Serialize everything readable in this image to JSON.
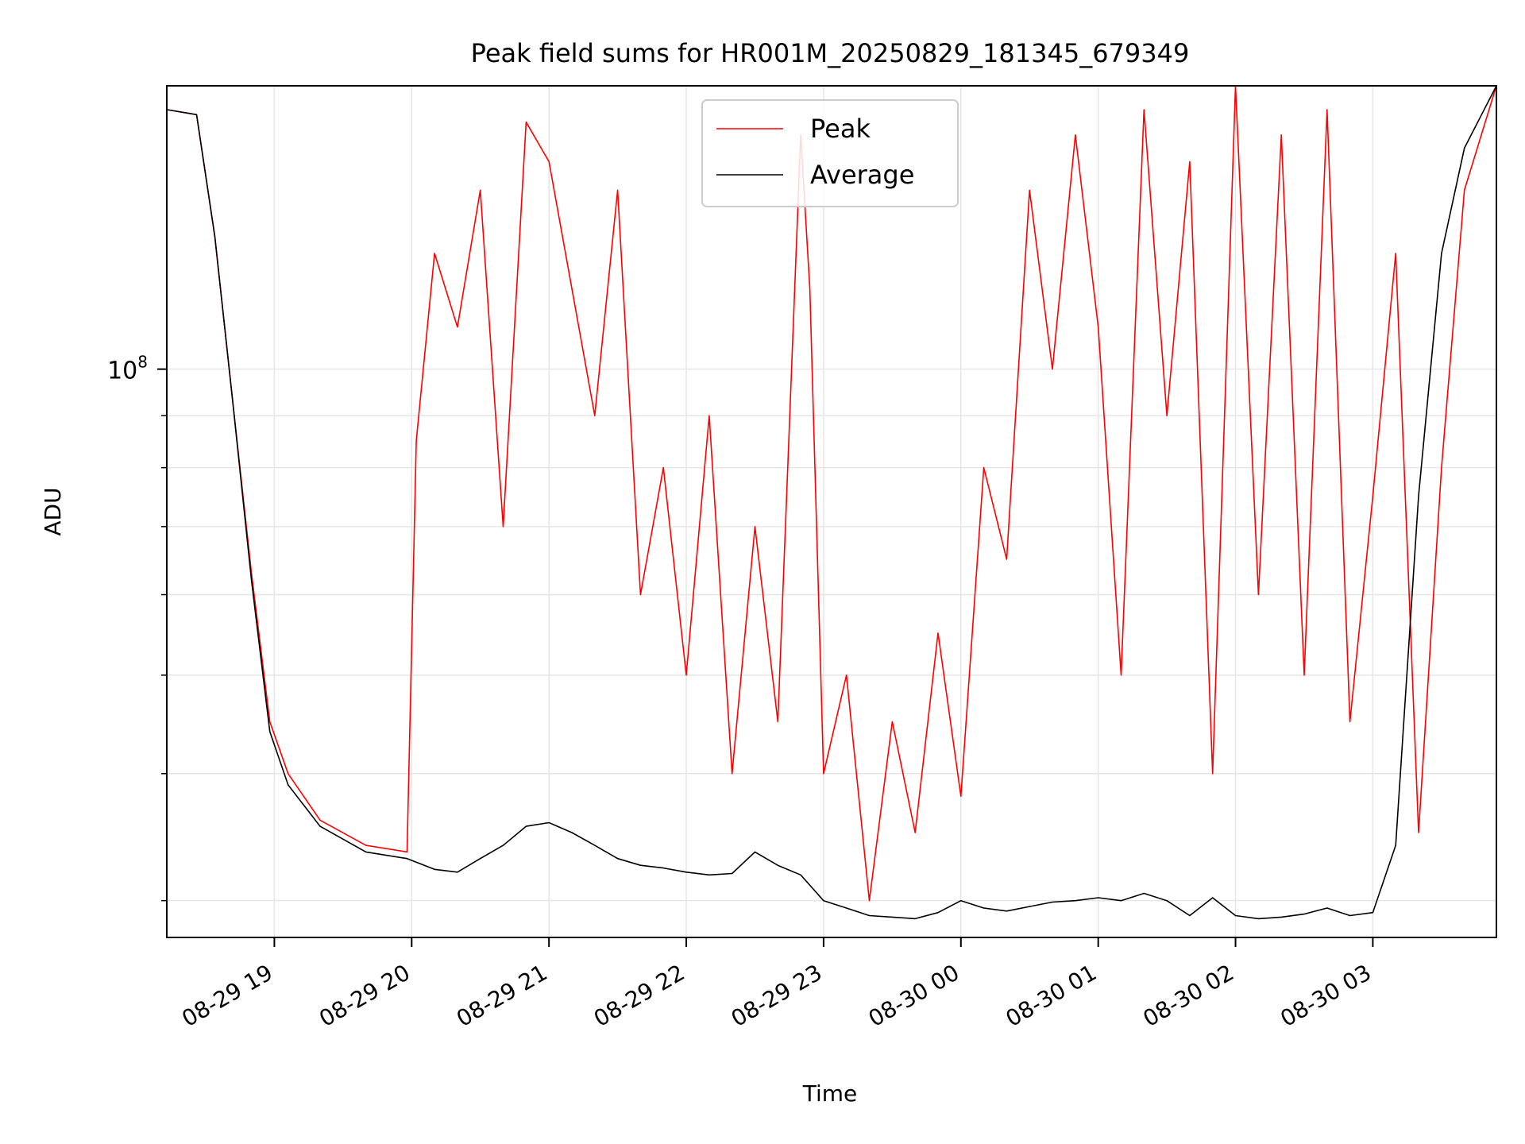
{
  "chart_data": {
    "type": "line",
    "title": "Peak field sums for HR001M_20250829_181345_679349",
    "xlabel": "Time",
    "ylabel": "ADU",
    "yscale": "log",
    "grid": true,
    "legend_position": "top-center",
    "x_range": [
      "2025-08-29 18:13",
      "2025-08-30 03:54"
    ],
    "ylim": [
      27600000,
      190000000
    ],
    "x_ticks": [
      {
        "value": "2025-08-29 19:00",
        "label": "08-29 19"
      },
      {
        "value": "2025-08-29 20:00",
        "label": "08-29 20"
      },
      {
        "value": "2025-08-29 21:00",
        "label": "08-29 21"
      },
      {
        "value": "2025-08-29 22:00",
        "label": "08-29 22"
      },
      {
        "value": "2025-08-29 23:00",
        "label": "08-29 23"
      },
      {
        "value": "2025-08-30 00:00",
        "label": "08-30 00"
      },
      {
        "value": "2025-08-30 01:00",
        "label": "08-30 01"
      },
      {
        "value": "2025-08-30 02:00",
        "label": "08-30 02"
      },
      {
        "value": "2025-08-30 03:00",
        "label": "08-30 03"
      }
    ],
    "y_ticks": [
      {
        "value": 100000000,
        "base": "10",
        "exp": "8"
      }
    ],
    "series": [
      {
        "name": "Peak",
        "color": "#ff0000",
        "x": [
          "2025-08-29 18:13",
          "2025-08-29 18:26",
          "2025-08-29 18:34",
          "2025-08-29 18:42",
          "2025-08-29 18:50",
          "2025-08-29 18:58",
          "2025-08-29 19:06",
          "2025-08-29 19:20",
          "2025-08-29 19:40",
          "2025-08-29 19:58",
          "2025-08-29 20:02",
          "2025-08-29 20:10",
          "2025-08-29 20:20",
          "2025-08-29 20:30",
          "2025-08-29 20:40",
          "2025-08-29 20:50",
          "2025-08-29 21:00",
          "2025-08-29 21:10",
          "2025-08-29 21:20",
          "2025-08-29 21:30",
          "2025-08-29 21:40",
          "2025-08-29 21:50",
          "2025-08-29 22:00",
          "2025-08-29 22:10",
          "2025-08-29 22:20",
          "2025-08-29 22:30",
          "2025-08-29 22:40",
          "2025-08-29 22:50",
          "2025-08-29 22:54",
          "2025-08-29 23:00",
          "2025-08-29 23:10",
          "2025-08-29 23:20",
          "2025-08-29 23:30",
          "2025-08-29 23:40",
          "2025-08-29 23:50",
          "2025-08-30 00:00",
          "2025-08-30 00:10",
          "2025-08-30 00:20",
          "2025-08-30 00:30",
          "2025-08-30 00:40",
          "2025-08-30 00:50",
          "2025-08-30 01:00",
          "2025-08-30 01:10",
          "2025-08-30 01:20",
          "2025-08-30 01:30",
          "2025-08-30 01:40",
          "2025-08-30 01:50",
          "2025-08-30 02:00",
          "2025-08-30 02:10",
          "2025-08-30 02:20",
          "2025-08-30 02:30",
          "2025-08-30 02:40",
          "2025-08-30 02:50",
          "2025-08-30 03:00",
          "2025-08-30 03:10",
          "2025-08-30 03:20",
          "2025-08-30 03:30",
          "2025-08-30 03:40",
          "2025-08-30 03:54"
        ],
        "values": [
          180000000,
          178000000,
          135000000,
          92000000,
          63000000,
          45000000,
          40000000,
          36000000,
          34000000,
          33500000,
          85000000,
          130000000,
          110000000,
          150000000,
          70000000,
          175000000,
          160000000,
          120000000,
          90000000,
          150000000,
          60000000,
          80000000,
          50000000,
          90000000,
          40000000,
          70000000,
          45000000,
          170000000,
          120000000,
          40000000,
          50000000,
          30000000,
          45000000,
          35000000,
          55000000,
          38000000,
          80000000,
          65000000,
          150000000,
          100000000,
          170000000,
          110000000,
          50000000,
          180000000,
          90000000,
          160000000,
          40000000,
          190000000,
          60000000,
          170000000,
          50000000,
          180000000,
          45000000,
          75000000,
          130000000,
          35000000,
          80000000,
          150000000,
          190000000
        ]
      },
      {
        "name": "Average",
        "color": "#000000",
        "x": [
          "2025-08-29 18:13",
          "2025-08-29 18:26",
          "2025-08-29 18:34",
          "2025-08-29 18:42",
          "2025-08-29 18:50",
          "2025-08-29 18:58",
          "2025-08-29 19:06",
          "2025-08-29 19:20",
          "2025-08-29 19:40",
          "2025-08-29 19:58",
          "2025-08-29 20:10",
          "2025-08-29 20:20",
          "2025-08-29 20:30",
          "2025-08-29 20:40",
          "2025-08-29 20:50",
          "2025-08-29 21:00",
          "2025-08-29 21:10",
          "2025-08-29 21:20",
          "2025-08-29 21:30",
          "2025-08-29 21:40",
          "2025-08-29 21:50",
          "2025-08-29 22:00",
          "2025-08-29 22:10",
          "2025-08-29 22:20",
          "2025-08-29 22:30",
          "2025-08-29 22:40",
          "2025-08-29 22:50",
          "2025-08-29 23:00",
          "2025-08-29 23:10",
          "2025-08-29 23:20",
          "2025-08-29 23:30",
          "2025-08-29 23:40",
          "2025-08-29 23:50",
          "2025-08-30 00:00",
          "2025-08-30 00:10",
          "2025-08-30 00:20",
          "2025-08-30 00:30",
          "2025-08-30 00:40",
          "2025-08-30 00:50",
          "2025-08-30 01:00",
          "2025-08-30 01:10",
          "2025-08-30 01:20",
          "2025-08-30 01:30",
          "2025-08-30 01:40",
          "2025-08-30 01:50",
          "2025-08-30 02:00",
          "2025-08-30 02:10",
          "2025-08-30 02:20",
          "2025-08-30 02:30",
          "2025-08-30 02:40",
          "2025-08-30 02:50",
          "2025-08-30 03:00",
          "2025-08-30 03:10",
          "2025-08-30 03:20",
          "2025-08-30 03:30",
          "2025-08-30 03:40",
          "2025-08-30 03:54"
        ],
        "values": [
          180000000,
          178000000,
          135000000,
          92000000,
          62000000,
          44000000,
          39000000,
          35500000,
          33500000,
          33000000,
          32200000,
          32000000,
          33000000,
          34000000,
          35500000,
          35800000,
          35000000,
          34000000,
          33000000,
          32500000,
          32300000,
          32000000,
          31800000,
          31900000,
          33500000,
          32500000,
          31800000,
          30000000,
          29500000,
          29000000,
          28900000,
          28800000,
          29200000,
          30000000,
          29500000,
          29300000,
          29600000,
          29900000,
          30000000,
          30200000,
          30000000,
          30500000,
          30000000,
          29000000,
          30200000,
          29000000,
          28800000,
          28900000,
          29100000,
          29500000,
          29000000,
          29200000,
          34000000,
          75000000,
          130000000,
          165000000,
          190000000
        ]
      }
    ]
  }
}
